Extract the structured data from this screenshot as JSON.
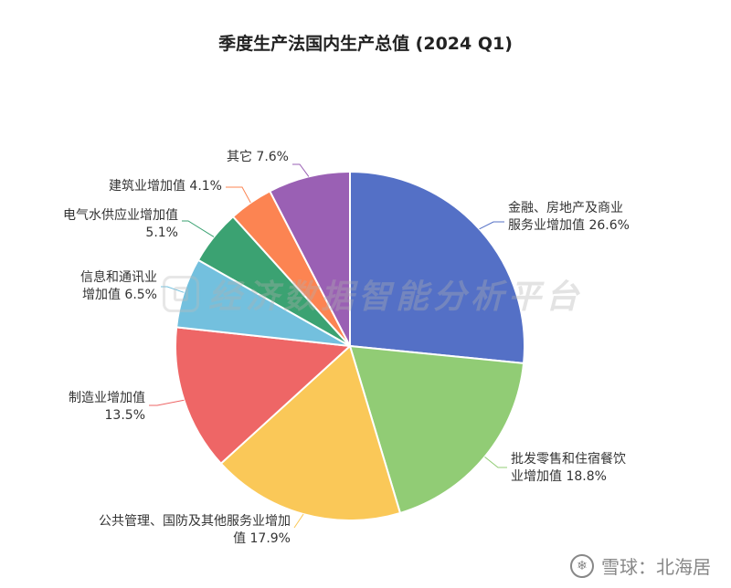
{
  "chart_data": {
    "type": "pie",
    "title": "季度生产法国内生产总值 (2024 Q1)",
    "series": [
      {
        "label_lines": [
          "金融、房地产及商业",
          "服务业增加值 26.6%"
        ],
        "value": 26.6,
        "color": "#5470c6"
      },
      {
        "label_lines": [
          "批发零售和住宿餐饮",
          "业增加值 18.8%"
        ],
        "value": 18.8,
        "color": "#91cc75"
      },
      {
        "label_lines": [
          "公共管理、国防及其他服务业增加",
          "值 17.9%"
        ],
        "value": 17.9,
        "color": "#fac858"
      },
      {
        "label_lines": [
          "制造业增加值",
          "13.5%"
        ],
        "value": 13.5,
        "color": "#ee6666"
      },
      {
        "label_lines": [
          "信息和通讯业",
          "增加值 6.5%"
        ],
        "value": 6.5,
        "color": "#73c0de"
      },
      {
        "label_lines": [
          "电气水供应业增加值",
          "5.1%"
        ],
        "value": 5.1,
        "color": "#3ba272"
      },
      {
        "label_lines": [
          "建筑业增加值 4.1%"
        ],
        "value": 4.1,
        "color": "#fc8452"
      },
      {
        "label_lines": [
          "其它 7.6%"
        ],
        "value": 7.6,
        "color": "#9a60b4"
      }
    ]
  },
  "watermark": {
    "text": "经济数据智能分析平台"
  },
  "footer": {
    "icon": "snowball-icon",
    "text": "雪球：北海居"
  }
}
